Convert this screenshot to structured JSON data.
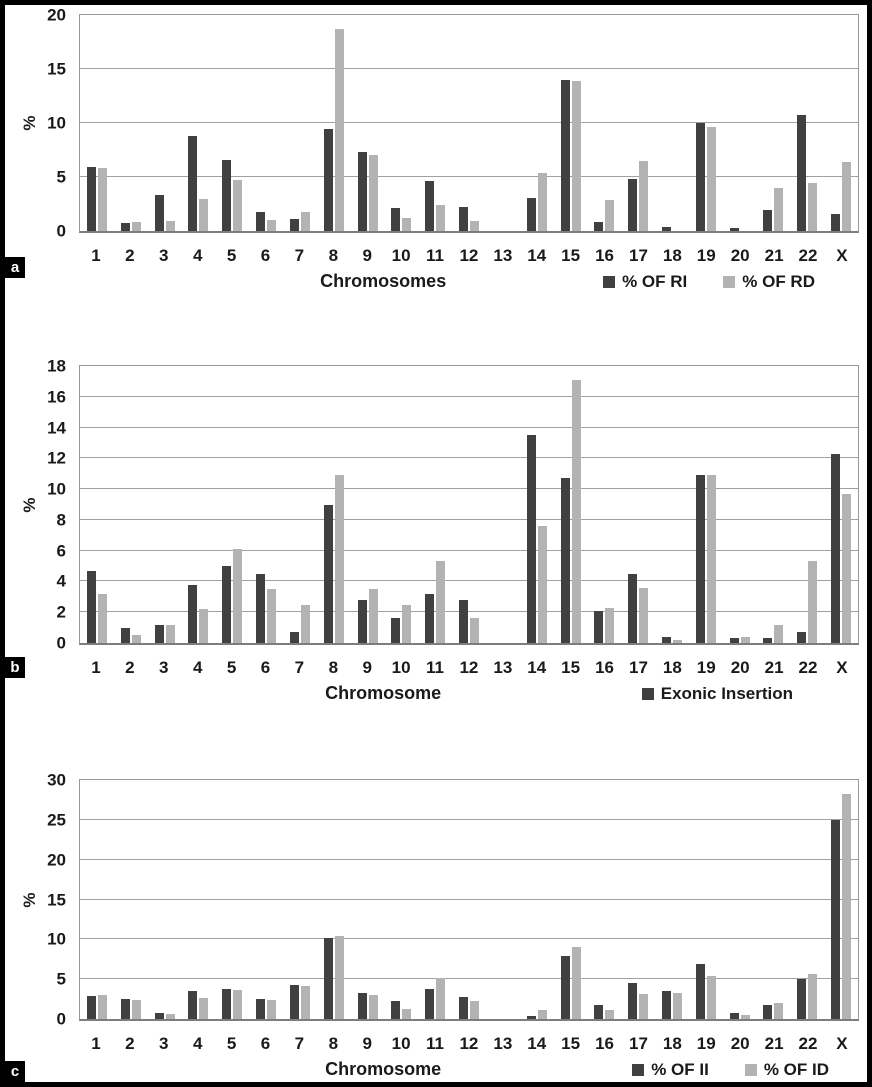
{
  "panels": [
    "a",
    "b",
    "c"
  ],
  "colors": {
    "dark": "#404040",
    "light": "#b3b3b3",
    "gridline": "#a0a0a0",
    "figure_border": "#000000"
  },
  "chart_data": [
    {
      "type": "bar",
      "title": "",
      "xlabel": "Chromosomes",
      "ylabel": "%",
      "ylim": [
        0,
        20
      ],
      "ytick_step": 5,
      "grid": true,
      "legend_position": "bottom-right",
      "categories": [
        "1",
        "2",
        "3",
        "4",
        "5",
        "6",
        "7",
        "8",
        "9",
        "10",
        "11",
        "12",
        "13",
        "14",
        "15",
        "16",
        "17",
        "18",
        "19",
        "20",
        "21",
        "22",
        "X"
      ],
      "series": [
        {
          "name": "% OF RI",
          "color": "#404040",
          "values": [
            5.9,
            0.7,
            3.3,
            8.8,
            6.6,
            1.8,
            1.1,
            9.4,
            7.3,
            2.1,
            4.6,
            2.2,
            0,
            3.1,
            14.0,
            0.8,
            4.8,
            0.4,
            10.0,
            0.3,
            1.9,
            10.7,
            1.6
          ]
        },
        {
          "name": "% OF RD",
          "color": "#b3b3b3",
          "values": [
            5.8,
            0.8,
            0.9,
            3.0,
            4.7,
            1.0,
            1.8,
            18.7,
            7.0,
            1.2,
            2.4,
            0.9,
            0,
            5.4,
            13.9,
            2.9,
            6.5,
            0,
            9.6,
            0,
            4.0,
            4.4,
            6.4
          ]
        }
      ],
      "legend": [
        {
          "label": "% OF RI",
          "color": "#404040"
        },
        {
          "label": "% OF RD",
          "color": "#b3b3b3"
        }
      ]
    },
    {
      "type": "bar",
      "title": "",
      "xlabel": "Chromosome",
      "ylabel": "%",
      "ylim": [
        0,
        18
      ],
      "ytick_step": 2,
      "grid": true,
      "legend_position": "bottom-right",
      "categories": [
        "1",
        "2",
        "3",
        "4",
        "5",
        "6",
        "7",
        "8",
        "9",
        "10",
        "11",
        "12",
        "13",
        "14",
        "15",
        "16",
        "17",
        "18",
        "19",
        "20",
        "21",
        "22",
        "X"
      ],
      "series": [
        {
          "name": "Exonic Insertion",
          "color": "#404040",
          "values": [
            4.7,
            1.0,
            1.2,
            3.8,
            5.0,
            4.5,
            0.7,
            9.0,
            2.8,
            1.6,
            3.2,
            2.8,
            0,
            13.5,
            10.7,
            2.1,
            4.5,
            0.4,
            10.9,
            0.3,
            0.3,
            0.7,
            12.3
          ]
        },
        {
          "name": "",
          "color": "#b3b3b3",
          "values": [
            3.2,
            0.5,
            1.2,
            2.2,
            6.1,
            3.5,
            2.5,
            10.9,
            3.5,
            2.5,
            5.3,
            1.6,
            0,
            7.6,
            17.1,
            2.3,
            3.6,
            0.2,
            10.9,
            0.4,
            1.2,
            5.3,
            9.7
          ]
        }
      ],
      "legend": [
        {
          "label": "Exonic Insertion",
          "color": "#404040"
        }
      ]
    },
    {
      "type": "bar",
      "title": "",
      "xlabel": "Chromosome",
      "ylabel": "%",
      "ylim": [
        0,
        30
      ],
      "ytick_step": 5,
      "grid": true,
      "legend_position": "bottom-right",
      "categories": [
        "1",
        "2",
        "3",
        "4",
        "5",
        "6",
        "7",
        "8",
        "9",
        "10",
        "11",
        "12",
        "13",
        "14",
        "15",
        "16",
        "17",
        "18",
        "19",
        "20",
        "21",
        "22",
        "X"
      ],
      "series": [
        {
          "name": "% OF II",
          "color": "#404040",
          "values": [
            2.9,
            2.5,
            0.8,
            3.5,
            3.8,
            2.5,
            4.3,
            10.2,
            3.3,
            2.2,
            3.8,
            2.8,
            0,
            0.4,
            7.9,
            1.8,
            4.5,
            3.5,
            6.9,
            0.7,
            1.8,
            5.0,
            25.0
          ]
        },
        {
          "name": "% OF ID",
          "color": "#b3b3b3",
          "values": [
            3.0,
            2.4,
            0.6,
            2.7,
            3.6,
            2.4,
            4.2,
            10.4,
            3.0,
            1.3,
            5.2,
            2.3,
            0,
            1.1,
            9.0,
            1.1,
            3.2,
            3.3,
            5.4,
            0.5,
            2.0,
            5.6,
            28.3
          ]
        }
      ],
      "legend": [
        {
          "label": "% OF II",
          "color": "#404040"
        },
        {
          "label": "% OF ID",
          "color": "#b3b3b3"
        }
      ]
    }
  ]
}
